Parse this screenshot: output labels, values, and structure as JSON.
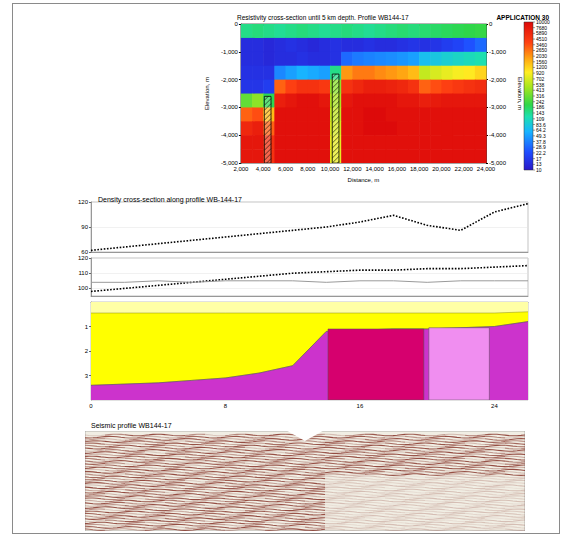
{
  "chart_data": [
    {
      "type": "heatmap",
      "title": "Resistivity cross-section until 5 km depth. Profile WB144-17",
      "subtitle": "APPLICATION 30",
      "xlabel": "Distance, m",
      "ylabel": "Elevation, m",
      "x_edges": [
        2000,
        3000,
        4000,
        5000,
        6000,
        7000,
        8000,
        9000,
        10000,
        11000,
        12000,
        13000,
        14000,
        15000,
        16000,
        17000,
        18000,
        19000,
        20000,
        21000,
        22000,
        23000,
        24000
      ],
      "y_edges": [
        0,
        -500,
        -1000,
        -1500,
        -2000,
        -2500,
        -3000,
        -3500,
        -4000,
        -4500,
        -5000
      ],
      "cells": [
        [
          150,
          160,
          150,
          140,
          150,
          160,
          150,
          140,
          150,
          160,
          150,
          140,
          150,
          160,
          170,
          160,
          170,
          180,
          190,
          200,
          210,
          220
        ],
        [
          14,
          14,
          13,
          14,
          15,
          14,
          13,
          14,
          15,
          14,
          14,
          15,
          14,
          14,
          15,
          16,
          15,
          16,
          18,
          20,
          24,
          30
        ],
        [
          14,
          14,
          13,
          14,
          14,
          15,
          14,
          14,
          15,
          30,
          35,
          38,
          40,
          42,
          45,
          50,
          70,
          80,
          90,
          100,
          110,
          120
        ],
        [
          15,
          15,
          15,
          40,
          50,
          60,
          55,
          50,
          150,
          2000,
          2500,
          2500,
          2200,
          2000,
          1800,
          1500,
          600,
          700,
          800,
          900,
          1000,
          1200
        ],
        [
          16,
          16,
          18,
          3000,
          4000,
          5000,
          5000,
          4500,
          400,
          5000,
          6000,
          7000,
          7000,
          6500,
          6000,
          5000,
          3000,
          3500,
          4000,
          4500,
          5000,
          5500
        ],
        [
          300,
          400,
          200,
          7000,
          8000,
          9000,
          9000,
          8000,
          500,
          8000,
          9000,
          9000,
          9000,
          9000,
          8000,
          8000,
          7000,
          7500,
          8000,
          8000,
          8000,
          8000
        ],
        [
          3000,
          3500,
          1500,
          9000,
          9000,
          9000,
          9000,
          9000,
          600,
          9000,
          9000,
          10000,
          10000,
          9000,
          9000,
          9000,
          9000,
          9000,
          9000,
          9000,
          9000,
          9000
        ],
        [
          6000,
          7000,
          3000,
          9000,
          9000,
          9000,
          9000,
          9000,
          700,
          9000,
          9000,
          10000,
          10000,
          10000,
          9000,
          9000,
          9000,
          9000,
          9000,
          9000,
          9000,
          9000
        ],
        [
          8000,
          8000,
          5000,
          9000,
          9000,
          9000,
          9000,
          9000,
          800,
          9000,
          9000,
          9000,
          9000,
          9000,
          9000,
          9000,
          9000,
          9000,
          9000,
          9000,
          9000,
          9000
        ],
        [
          8000,
          8000,
          5000,
          9000,
          9000,
          9000,
          9000,
          9000,
          800,
          9000,
          9000,
          9000,
          9000,
          9000,
          9000,
          9000,
          9000,
          9000,
          9000,
          9000,
          9000,
          9000
        ]
      ],
      "faults": [
        {
          "x": [
            4100,
            4700
          ],
          "y": [
            -2600,
            -5000
          ]
        },
        {
          "x": [
            10200,
            10800
          ],
          "y": [
            -1800,
            -5000
          ]
        }
      ],
      "xlim": [
        2000,
        24000
      ],
      "xticks": [
        2000,
        4000,
        6000,
        8000,
        10000,
        12000,
        14000,
        16000,
        18000,
        20000,
        22000,
        24000
      ],
      "ylim": [
        -5000,
        0
      ],
      "yticks": [
        0,
        -1000,
        -2000,
        -3000,
        -4000,
        -5000
      ],
      "colorbar_range": [
        10,
        10000
      ],
      "colorbar_ticks": [
        10000,
        7680,
        5890,
        4510,
        3460,
        2650,
        2030,
        1560,
        1200,
        920,
        702,
        538,
        413,
        316,
        242,
        186,
        143,
        109,
        83.6,
        64.2,
        49.3,
        37.8,
        28.9,
        22.2,
        17,
        13,
        10
      ]
    },
    {
      "type": "profile",
      "title": "Density cross-section along profile WB-144-17",
      "x": [
        0,
        2,
        4,
        6,
        8,
        10,
        12,
        14,
        16,
        18,
        20,
        22,
        24,
        26
      ],
      "xlim": [
        0,
        26
      ],
      "xticks": [
        0,
        8,
        16,
        24
      ],
      "panels": [
        {
          "type": "line",
          "ylim": [
            60,
            120
          ],
          "yticks": [
            60,
            90,
            120
          ],
          "series": [
            {
              "color": "#000000",
              "line_style": "dotted",
              "values": [
                62,
                66,
                70,
                74,
                78,
                82,
                86,
                90,
                96,
                104,
                92,
                86,
                108,
                118
              ]
            }
          ]
        },
        {
          "type": "line",
          "ylim": [
            95,
            120
          ],
          "yticks": [
            100,
            110,
            120
          ],
          "series": [
            {
              "color": "#000000",
              "line_style": "dotted",
              "values": [
                98,
                100,
                102,
                104,
                106,
                108,
                110,
                111,
                112,
                112,
                113,
                113,
                114,
                115
              ]
            },
            {
              "color": "#9a9a9a",
              "line_style": "solid",
              "values": [
                104,
                104,
                105,
                104,
                105,
                105,
                105,
                104,
                105,
                105,
                104,
                105,
                105,
                105
              ]
            }
          ]
        },
        {
          "type": "layers",
          "ylim": [
            0,
            4
          ],
          "yticks": [
            1,
            2,
            3
          ],
          "colors": [
            "#ffffa6",
            "#ffff00",
            "#cc33cc"
          ],
          "boundaries": [
            [
              0.45,
              0.45,
              0.45,
              0.45,
              0.45,
              0.45,
              0.45,
              0.45,
              0.45,
              0.45,
              0.45,
              0.45,
              0.45,
              0.4
            ],
            [
              3.4,
              3.35,
              3.3,
              3.2,
              3.1,
              2.9,
              2.6,
              1.2,
              1.15,
              1.1,
              1.1,
              1.05,
              1.0,
              0.8
            ]
          ],
          "blocks": [
            {
              "x": [
                14.1,
                19.8
              ],
              "top": 1.1,
              "color": "#d6006e"
            },
            {
              "x": [
                20.1,
                23.7
              ],
              "top": 1.05,
              "color": "#f08ef0"
            }
          ]
        }
      ]
    },
    {
      "type": "image",
      "title": "Seismic profile WB144-17"
    }
  ]
}
